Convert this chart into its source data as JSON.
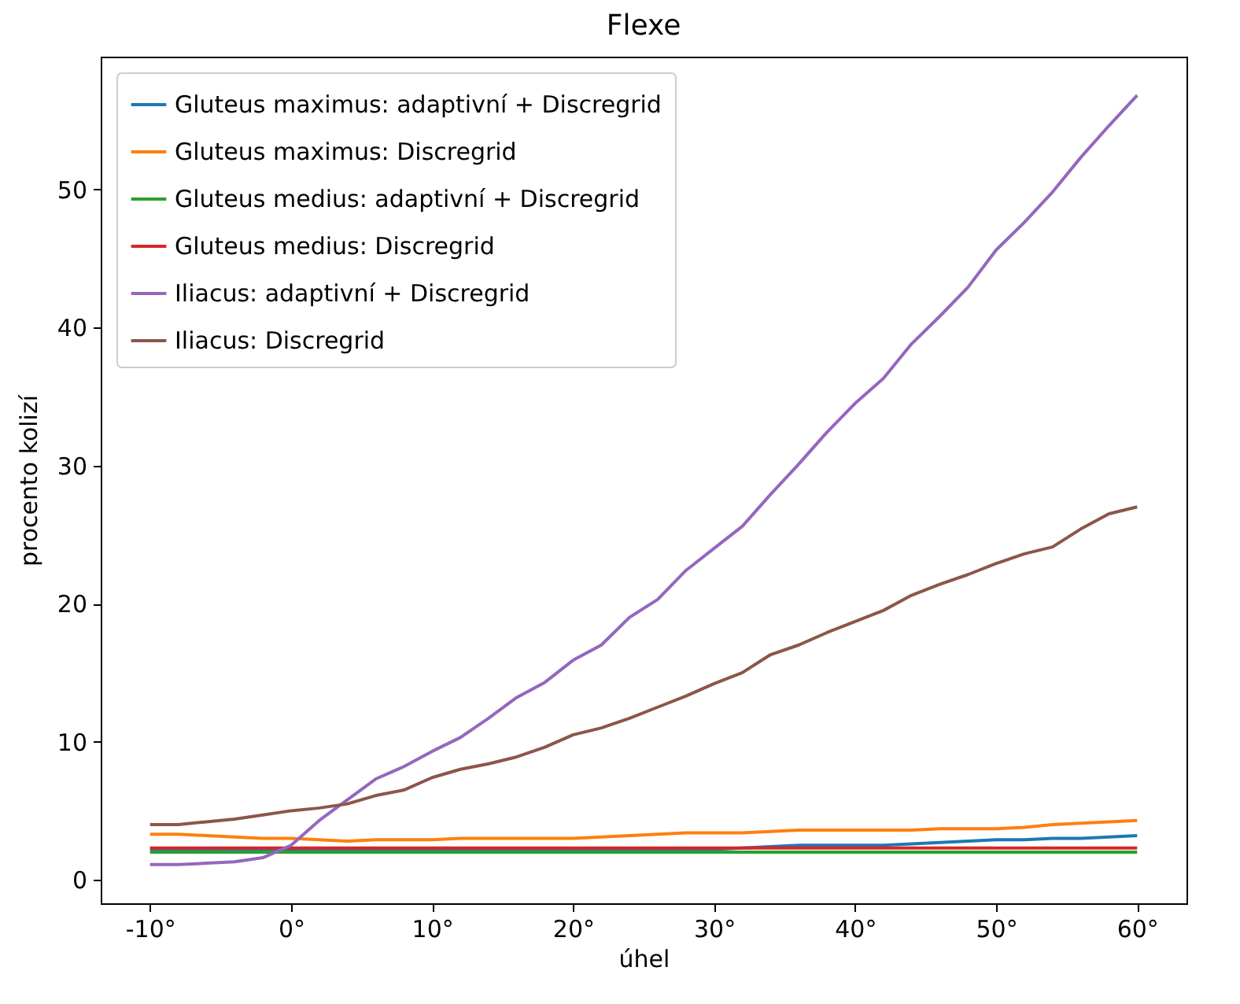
{
  "chart_data": {
    "type": "line",
    "title": "Flexe",
    "xlabel": "úhel",
    "ylabel": "procento kolizí",
    "x": [
      -10,
      -8,
      -6,
      -4,
      -2,
      0,
      2,
      4,
      6,
      8,
      10,
      12,
      14,
      16,
      18,
      20,
      22,
      24,
      26,
      28,
      30,
      32,
      34,
      36,
      38,
      40,
      42,
      44,
      46,
      48,
      50,
      52,
      54,
      56,
      58,
      60
    ],
    "series": [
      {
        "name": "Gluteus maximus: adaptivní + Discregrid",
        "color": "#1f77b4",
        "values": [
          2.2,
          2.2,
          2.2,
          2.2,
          2.2,
          2.2,
          2.2,
          2.2,
          2.2,
          2.2,
          2.2,
          2.2,
          2.2,
          2.2,
          2.2,
          2.2,
          2.2,
          2.2,
          2.2,
          2.2,
          2.2,
          2.3,
          2.4,
          2.5,
          2.5,
          2.5,
          2.5,
          2.6,
          2.7,
          2.8,
          2.9,
          2.9,
          3.0,
          3.0,
          3.1,
          3.2
        ]
      },
      {
        "name": "Gluteus maximus: Discregrid",
        "color": "#ff7f0e",
        "values": [
          3.3,
          3.3,
          3.2,
          3.1,
          3.0,
          3.0,
          2.9,
          2.8,
          2.9,
          2.9,
          2.9,
          3.0,
          3.0,
          3.0,
          3.0,
          3.0,
          3.1,
          3.2,
          3.3,
          3.4,
          3.4,
          3.4,
          3.5,
          3.6,
          3.6,
          3.6,
          3.6,
          3.6,
          3.7,
          3.7,
          3.7,
          3.8,
          4.0,
          4.1,
          4.2,
          4.3
        ]
      },
      {
        "name": "Gluteus medius: adaptivní + Discregrid",
        "color": "#2ca02c",
        "values": [
          2.0,
          2.0,
          2.0,
          2.0,
          2.0,
          2.0,
          2.0,
          2.0,
          2.0,
          2.0,
          2.0,
          2.0,
          2.0,
          2.0,
          2.0,
          2.0,
          2.0,
          2.0,
          2.0,
          2.0,
          2.0,
          2.0,
          2.0,
          2.0,
          2.0,
          2.0,
          2.0,
          2.0,
          2.0,
          2.0,
          2.0,
          2.0,
          2.0,
          2.0,
          2.0,
          2.0
        ]
      },
      {
        "name": "Gluteus medius: Discregrid",
        "color": "#d62728",
        "values": [
          2.3,
          2.3,
          2.3,
          2.3,
          2.3,
          2.3,
          2.3,
          2.3,
          2.3,
          2.3,
          2.3,
          2.3,
          2.3,
          2.3,
          2.3,
          2.3,
          2.3,
          2.3,
          2.3,
          2.3,
          2.3,
          2.3,
          2.3,
          2.3,
          2.3,
          2.3,
          2.3,
          2.3,
          2.3,
          2.3,
          2.3,
          2.3,
          2.3,
          2.3,
          2.3,
          2.3
        ]
      },
      {
        "name": "Iliacus: adaptivní + Discregrid",
        "color": "#9467bd",
        "values": [
          1.1,
          1.1,
          1.2,
          1.3,
          1.6,
          2.5,
          4.3,
          5.8,
          7.3,
          8.2,
          9.3,
          10.3,
          11.7,
          13.2,
          14.3,
          15.9,
          17.0,
          19.0,
          20.3,
          22.4,
          24.0,
          25.6,
          27.9,
          30.1,
          32.4,
          34.5,
          36.3,
          38.8,
          40.8,
          42.9,
          45.6,
          47.6,
          49.8,
          52.3,
          54.6,
          56.8
        ]
      },
      {
        "name": "Iliacus: Discregrid",
        "color": "#8c564b",
        "values": [
          4.0,
          4.0,
          4.2,
          4.4,
          4.7,
          5.0,
          5.2,
          5.5,
          6.1,
          6.5,
          7.4,
          8.0,
          8.4,
          8.9,
          9.6,
          10.5,
          11.0,
          11.7,
          12.5,
          13.3,
          14.2,
          15.0,
          16.3,
          17.0,
          17.9,
          18.7,
          19.5,
          20.6,
          21.4,
          22.1,
          22.9,
          23.6,
          24.1,
          25.4,
          26.5,
          27.0
        ]
      }
    ],
    "xlim": [
      -13.5,
      63.5
    ],
    "ylim": [
      -1.7,
      59.6
    ],
    "xticks": [
      {
        "value": -10,
        "label": "-10°"
      },
      {
        "value": 0,
        "label": "0°"
      },
      {
        "value": 10,
        "label": "10°"
      },
      {
        "value": 20,
        "label": "20°"
      },
      {
        "value": 30,
        "label": "30°"
      },
      {
        "value": 40,
        "label": "40°"
      },
      {
        "value": 50,
        "label": "50°"
      },
      {
        "value": 60,
        "label": "60°"
      }
    ],
    "yticks": [
      0,
      10,
      20,
      30,
      40,
      50
    ],
    "grid": false,
    "legend": "top left",
    "marker": "none",
    "line_style": "solid"
  }
}
